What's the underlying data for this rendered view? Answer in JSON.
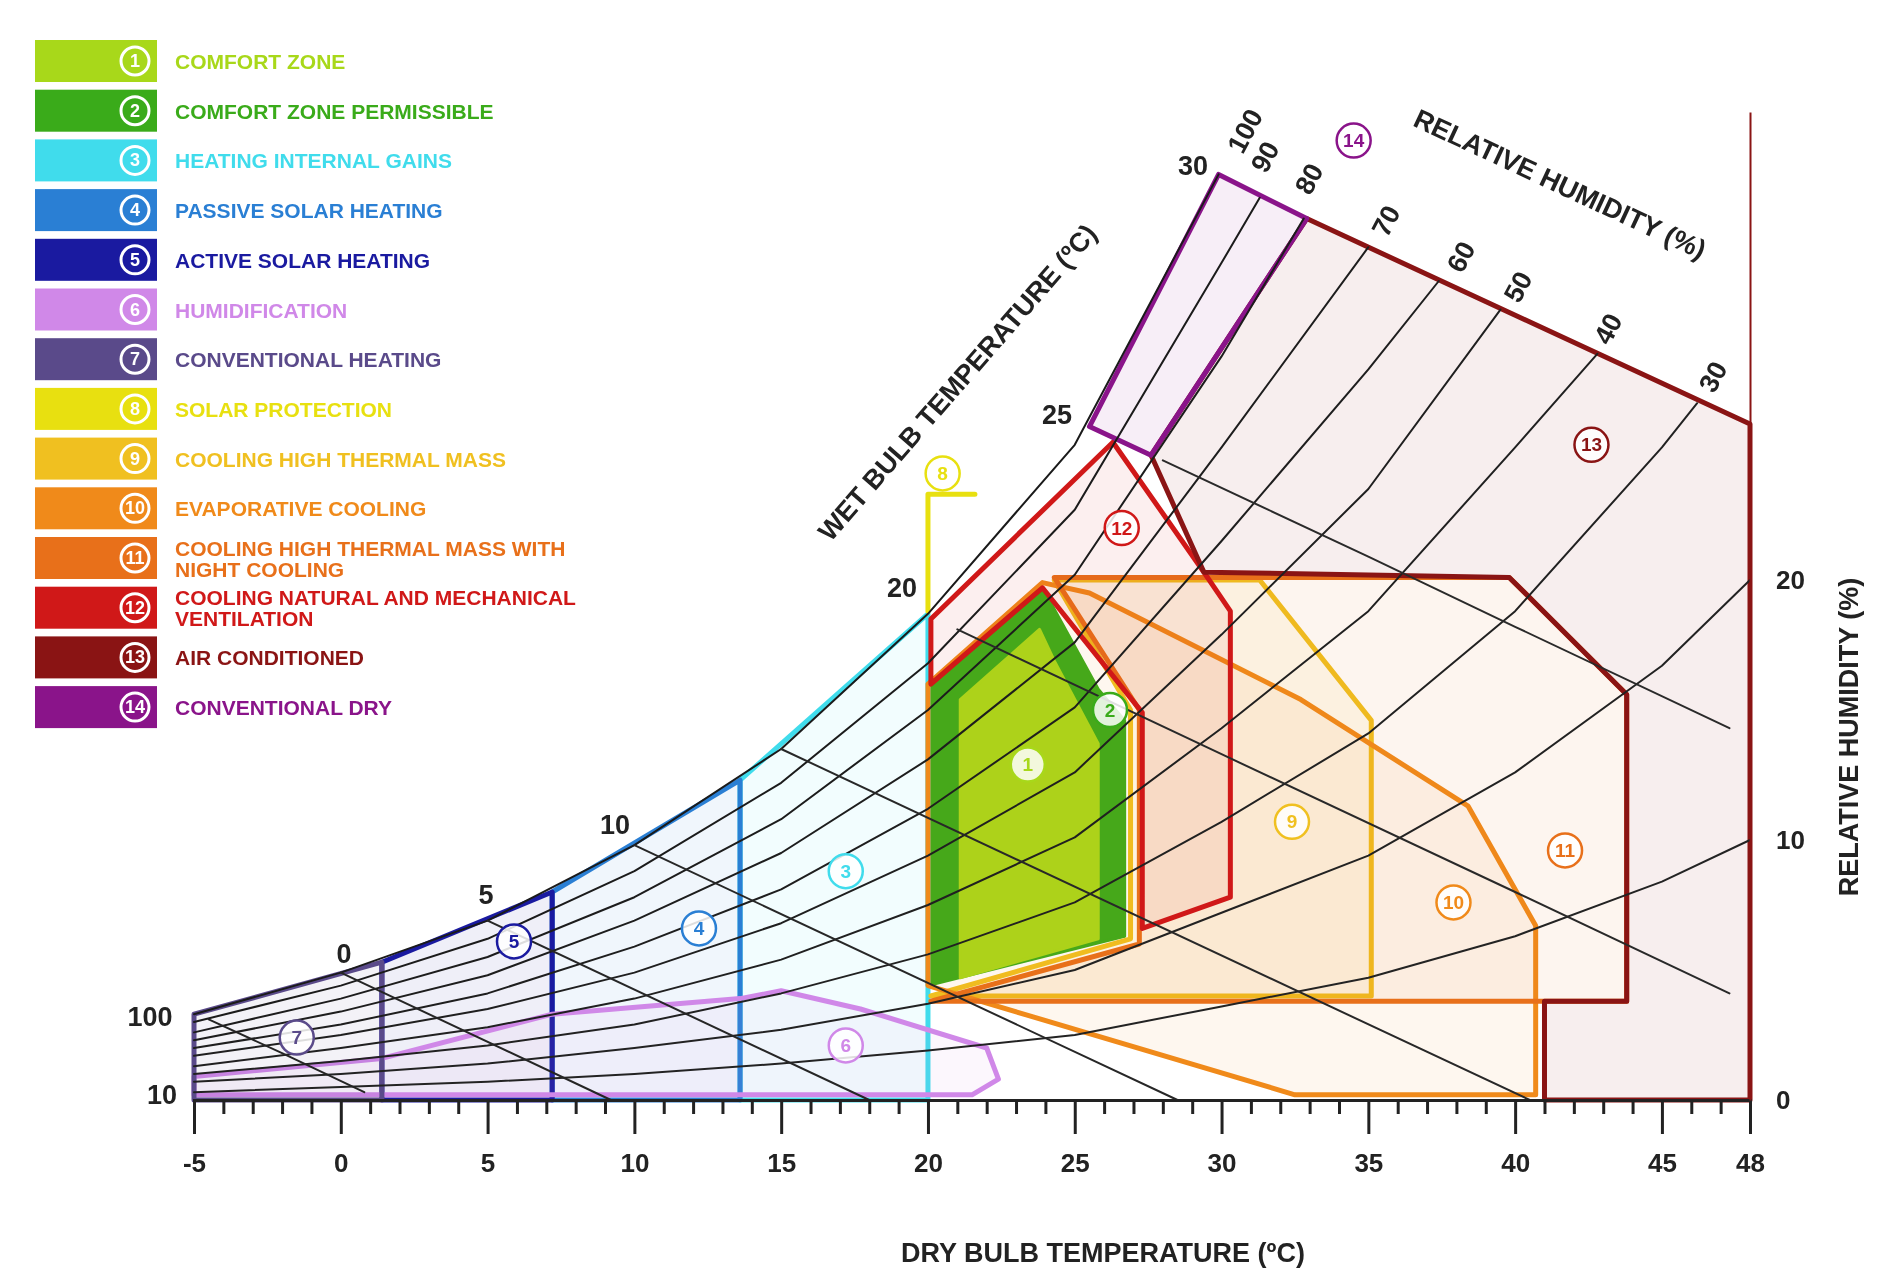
{
  "chart_data": {
    "type": "line",
    "xlabel": "DRY BULB TEMPERATURE (ºC)",
    "ylabel": "RELATIVE HUMIDITY (%)",
    "xlim": [
      -5,
      48
    ],
    "ylim": [
      0,
      38
    ],
    "xticks": [
      -5,
      {
        "value": -4,
        "label": null
      },
      {
        "value": -3,
        "label": null
      },
      {
        "value": -2,
        "label": null
      },
      {
        "value": -1,
        "label": null
      },
      0,
      {
        "value": 1,
        "label": null
      },
      {
        "value": 2,
        "label": null
      },
      {
        "value": 3,
        "label": null
      },
      {
        "value": 4,
        "label": null
      },
      5,
      {
        "value": 6,
        "label": null
      },
      {
        "value": 7,
        "label": null
      },
      {
        "value": 8,
        "label": null
      },
      {
        "value": 9,
        "label": null
      },
      10,
      {
        "value": 11,
        "label": null
      },
      {
        "value": 12,
        "label": null
      },
      {
        "value": 13,
        "label": null
      },
      {
        "value": 14,
        "label": null
      },
      15,
      {
        "value": 16,
        "label": null
      },
      {
        "value": 17,
        "label": null
      },
      {
        "value": 18,
        "label": null
      },
      {
        "value": 19,
        "label": null
      },
      20,
      {
        "value": 21,
        "label": null
      },
      {
        "value": 22,
        "label": null
      },
      {
        "value": 23,
        "label": null
      },
      {
        "value": 24,
        "label": null
      },
      25,
      {
        "value": 26,
        "label": null
      },
      {
        "value": 27,
        "label": null
      },
      {
        "value": 28,
        "label": null
      },
      {
        "value": 29,
        "label": null
      },
      30,
      {
        "value": 31,
        "label": null
      },
      {
        "value": 32,
        "label": null
      },
      {
        "value": 33,
        "label": null
      },
      {
        "value": 34,
        "label": null
      },
      35,
      {
        "value": 36,
        "label": null
      },
      {
        "value": 37,
        "label": null
      },
      {
        "value": 38,
        "label": null
      },
      {
        "value": 39,
        "label": null
      },
      40,
      {
        "value": 41,
        "label": null
      },
      {
        "value": 42,
        "label": null
      },
      {
        "value": 43,
        "label": null
      },
      {
        "value": 44,
        "label": null
      },
      45,
      {
        "value": 46,
        "label": null
      },
      {
        "value": 47,
        "label": null
      },
      48
    ],
    "yticks": [
      0,
      10,
      20
    ],
    "grid": false,
    "legend": "top left",
    "series": [
      {
        "color": "#1a1a1a",
        "x": [
          -5,
          0,
          5,
          10,
          15,
          20,
          25,
          29.9
        ],
        "values": [
          3.3,
          4.9,
          6.9,
          9.8,
          13.5,
          18.7,
          25.2,
          35.6
        ]
      },
      {
        "color": "#1b1b1b",
        "x": [
          -5,
          0,
          5,
          10,
          15,
          20,
          25,
          30,
          31.3
        ],
        "values": [
          3.0,
          4.4,
          6.2,
          8.8,
          12.2,
          16.8,
          22.7,
          32.2,
          34.7
        ]
      },
      {
        "color": "#1c1c1c",
        "x": [
          -5,
          0,
          5,
          10,
          15,
          20,
          25,
          30,
          32.8
        ],
        "values": [
          2.6,
          3.9,
          5.5,
          7.8,
          10.8,
          15.0,
          20.2,
          28.6,
          33.9
        ]
      },
      {
        "color": "#1d1d1d",
        "x": [
          -5,
          0,
          5,
          10,
          15,
          20,
          25,
          30,
          35
        ],
        "values": [
          2.3,
          3.4,
          4.8,
          6.9,
          9.5,
          13.1,
          17.6,
          25.1,
          32.8
        ]
      },
      {
        "color": "#1e1e1e",
        "x": [
          -5,
          0,
          5,
          10,
          15,
          20,
          25,
          30,
          35,
          37.4
        ],
        "values": [
          2.0,
          2.9,
          4.1,
          5.9,
          8.1,
          11.2,
          15.1,
          21.5,
          28.1,
          31.5
        ]
      },
      {
        "color": "#1f1f1f",
        "x": [
          -5,
          0,
          5,
          10,
          15,
          20,
          25,
          30,
          35,
          39.5
        ],
        "values": [
          1.7,
          2.5,
          3.5,
          4.9,
          6.8,
          9.4,
          12.6,
          17.9,
          23.5,
          30.4
        ]
      },
      {
        "color": "#202020",
        "x": [
          -5,
          0,
          5,
          10,
          15,
          20,
          25,
          30,
          35,
          40,
          42.8
        ],
        "values": [
          1.3,
          2.0,
          2.8,
          3.9,
          5.4,
          7.5,
          10.1,
          14.3,
          18.8,
          25.1,
          28.7
        ]
      },
      {
        "color": "#212121",
        "x": [
          -5,
          0,
          5,
          10,
          15,
          20,
          25,
          30,
          35,
          40,
          45,
          46.2
        ],
        "values": [
          1.0,
          1.5,
          2.1,
          2.9,
          4.1,
          5.6,
          7.6,
          10.7,
          14.1,
          18.8,
          25.1,
          26.8
        ]
      },
      {
        "color": "#222222",
        "x": [
          -5,
          0,
          5,
          10,
          15,
          20,
          25,
          30,
          35,
          40,
          45,
          48
        ],
        "values": [
          0.7,
          1.0,
          1.4,
          2.0,
          2.7,
          3.7,
          5.0,
          7.2,
          9.4,
          12.6,
          16.7,
          20.0
        ]
      },
      {
        "color": "#232323",
        "x": [
          -5,
          0,
          5,
          10,
          15,
          20,
          25,
          30,
          35,
          40,
          45,
          48
        ],
        "values": [
          0.3,
          0.5,
          0.7,
          1.0,
          1.4,
          1.9,
          2.5,
          3.6,
          4.7,
          6.3,
          8.4,
          10.0
        ]
      },
      {
        "color": "#242424",
        "x": [
          -4.5,
          -2,
          0.8
        ],
        "values": [
          3.1,
          1.8,
          0.3
        ]
      },
      {
        "color": "#252525",
        "x": [
          0,
          9.2
        ],
        "values": [
          4.9,
          0
        ]
      },
      {
        "color": "#262626",
        "x": [
          5,
          18.0
        ],
        "values": [
          6.9,
          0
        ]
      },
      {
        "color": "#272727",
        "x": [
          10,
          28.5
        ],
        "values": [
          9.8,
          0
        ]
      },
      {
        "color": "#282828",
        "x": [
          15,
          40.5
        ],
        "values": [
          13.5,
          0
        ]
      },
      {
        "color": "#292929",
        "x": [
          21.0,
          30,
          40,
          47.3
        ],
        "values": [
          18.1,
          13.3,
          8.0,
          4.1
        ]
      },
      {
        "color": "#2a2a2a",
        "x": [
          28.0,
          35,
          40,
          47.3
        ],
        "values": [
          24.6,
          20.9,
          18.2,
          14.3
        ]
      },
      {
        "name": "COMFORT ZONE",
        "type": "area",
        "color": "#a8d81a",
        "x": [
          21.1,
          21.1,
          23.8,
          24.3,
          25.8,
          25.8,
          21.1
        ],
        "values": [
          4.7,
          15.4,
          18.1,
          16.9,
          13.7,
          6.2,
          4.7
        ]
      },
      {
        "name": "COMFORT ZONE PERMISSIBLE",
        "type": "area",
        "color": "#3aab1a",
        "x": [
          20,
          20,
          23.9,
          25.8,
          26.7,
          26.7,
          20
        ],
        "values": [
          4.4,
          16.0,
          19.7,
          15.8,
          14.6,
          6.3,
          4.4
        ]
      },
      {
        "name": "HEATING INTERNAL GAINS",
        "type": "area",
        "color": "#40dcec",
        "x": [
          13.6,
          13.6,
          20,
          20,
          13.6
        ],
        "values": [
          0,
          12.3,
          18.7,
          0,
          0
        ]
      },
      {
        "name": "PASSIVE SOLAR HEATING",
        "type": "area",
        "color": "#2a7fd4",
        "x": [
          7.2,
          7.2,
          13.6,
          13.6,
          7.2
        ],
        "values": [
          0,
          8.0,
          12.3,
          0,
          0
        ]
      },
      {
        "name": "ACTIVE SOLAR HEATING",
        "type": "area",
        "color": "#1a1aa0",
        "x": [
          1.4,
          1.4,
          7.2,
          7.2,
          1.4
        ],
        "values": [
          0,
          5.3,
          8.0,
          0,
          0
        ]
      },
      {
        "name": "HUMIDIFICATION",
        "type": "area",
        "color": "#d088e8",
        "x": [
          -5,
          1.4,
          7.2,
          13.6,
          15,
          17.7,
          22,
          22.4,
          21.5,
          -5,
          -5
        ],
        "values": [
          0.9,
          1.6,
          3.3,
          3.9,
          4.2,
          3.5,
          2.0,
          0.8,
          0.2,
          0.2,
          0.9
        ]
      },
      {
        "name": "CONVENTIONAL HEATING",
        "type": "area",
        "color": "#5a4a8a",
        "x": [
          -5,
          -5,
          1.4,
          1.4,
          -5
        ],
        "values": [
          0,
          3.3,
          5.3,
          0,
          0
        ]
      },
      {
        "name": "SOLAR PROTECTION",
        "type": "line",
        "color": "#e8e010",
        "x": [
          20,
          20,
          21.6
        ],
        "values": [
          18.8,
          23.3,
          23.3
        ]
      },
      {
        "name": "COOLING HIGH THERMAL MASS",
        "type": "area",
        "color": "#f0c020",
        "x": [
          20.1,
          35.1,
          35.1,
          31.3,
          24.3,
          26.9,
          26.9,
          20.1
        ],
        "values": [
          4.0,
          4.0,
          14.6,
          20.0,
          20.0,
          15.0,
          6.2,
          4.0
        ]
      },
      {
        "name": "EVAPORATIVE COOLING",
        "type": "area",
        "color": "#f08a1a",
        "x": [
          20,
          32.5,
          40.7,
          40.7,
          38.4,
          32.7,
          25.5,
          23.9,
          20,
          20
        ],
        "values": [
          4.4,
          0.2,
          0.2,
          6.7,
          11.3,
          15.4,
          19.5,
          19.9,
          16.0,
          4.4
        ]
      },
      {
        "name": "COOLING HIGH THERMAL MASS WITH NIGHT COOLING",
        "type": "area",
        "color": "#e8701a",
        "x": [
          20.1,
          43.8,
          43.8,
          39.8,
          24.3,
          27.2,
          27.2,
          20.1
        ],
        "values": [
          3.8,
          3.8,
          15.6,
          20.1,
          20.1,
          15.0,
          6.0,
          3.8
        ]
      },
      {
        "name": "COOLING NATURAL AND MECHANICAL VENTILATION",
        "type": "area",
        "color": "#d01818",
        "x": [
          20.1,
          20.1,
          26.3,
          29.4,
          30.3,
          30.3,
          27.3,
          27.3,
          23.9,
          20.1
        ],
        "values": [
          16.0,
          18.5,
          25.3,
          20.3,
          18.8,
          7.8,
          6.6,
          14.9,
          19.7,
          16.0
        ]
      },
      {
        "name": "AIR CONDITIONED",
        "type": "area",
        "color": "#8a1414",
        "x": [
          48,
          48,
          32.9,
          27.6,
          29.4,
          39.8,
          43.8,
          43.8,
          41.0,
          41.0,
          48
        ],
        "values": [
          0,
          26.0,
          33.9,
          24.8,
          20.3,
          20.1,
          15.6,
          3.8,
          3.8,
          0,
          0
        ]
      },
      {
        "name": "CONVENTIONAL DRY",
        "type": "area",
        "color": "#8a148a",
        "x": [
          25.5,
          29.9,
          32.9,
          27.6,
          25.5
        ],
        "values": [
          25.9,
          35.6,
          33.9,
          24.8,
          25.9
        ]
      }
    ],
    "annotations": [
      {
        "text": "1",
        "x": 23.4,
        "y": 12.9
      },
      {
        "text": "2",
        "x": 26.2,
        "y": 15.0
      },
      {
        "text": "3",
        "x": 17.2,
        "y": 8.8
      },
      {
        "text": "4",
        "x": 12.2,
        "y": 6.6
      },
      {
        "text": "5",
        "x": 5.9,
        "y": 6.1
      },
      {
        "text": "6",
        "x": 17.2,
        "y": 2.1
      },
      {
        "text": "7",
        "x": -1.5,
        "y": 2.4
      },
      {
        "text": "8",
        "x": 20.5,
        "y": 24.1
      },
      {
        "text": "9",
        "x": 32.4,
        "y": 10.7
      },
      {
        "text": "10",
        "x": 37.9,
        "y": 7.6
      },
      {
        "text": "11",
        "x": 41.7,
        "y": 9.6
      },
      {
        "text": "12",
        "x": 26.6,
        "y": 22.0
      },
      {
        "text": "13",
        "x": 42.6,
        "y": 25.2
      },
      {
        "text": "14",
        "x": 34.5,
        "y": 36.9
      },
      "100",
      "90",
      "80",
      "70",
      "60",
      "50",
      "40",
      "30",
      "0",
      "5",
      "10",
      "20",
      "25",
      "30",
      "100",
      "10",
      "WET BULB TEMPERATURE (ºC)",
      "RELATIVE HUMIDITY (%)"
    ]
  }
}
